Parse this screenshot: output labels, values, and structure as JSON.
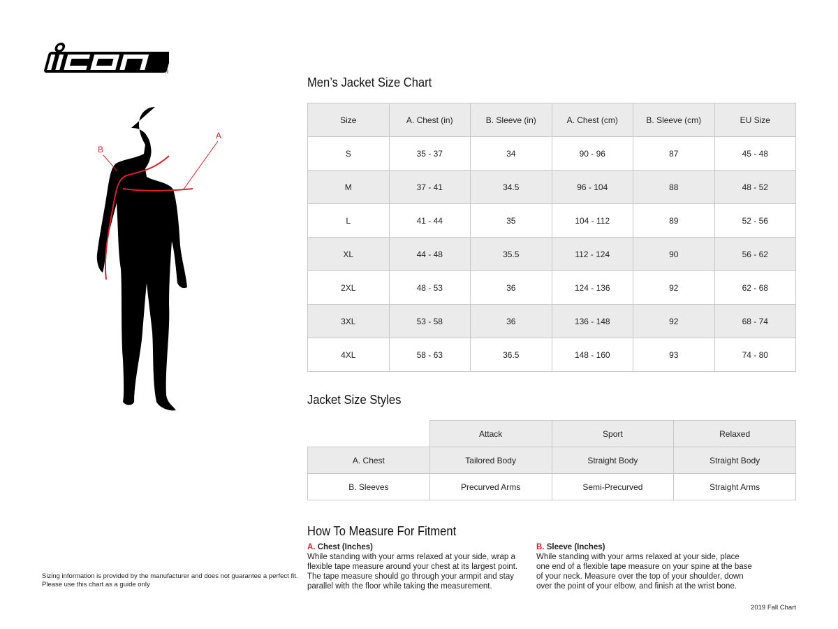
{
  "logo": {
    "text": "ICON"
  },
  "figure": {
    "label_a": "A",
    "label_b": "B",
    "accent": "#d0232a"
  },
  "size_chart": {
    "title": "Men’s Jacket Size Chart",
    "headers": [
      "Size",
      "A. Chest (in)",
      "B. Sleeve (in)",
      "A. Chest (cm)",
      "B. Sleeve (cm)",
      "EU Size"
    ],
    "rows": [
      [
        "S",
        "35 - 37",
        "34",
        "90 - 96",
        "87",
        "45 - 48"
      ],
      [
        "M",
        "37 - 41",
        "34.5",
        "96 - 104",
        "88",
        "48 - 52"
      ],
      [
        "L",
        "41 - 44",
        "35",
        "104 - 112",
        "89",
        "52 - 56"
      ],
      [
        "XL",
        "44 - 48",
        "35.5",
        "112 - 124",
        "90",
        "56 - 62"
      ],
      [
        "2XL",
        "48 - 53",
        "36",
        "124 - 136",
        "92",
        "62 - 68"
      ],
      [
        "3XL",
        "53 - 58",
        "36",
        "136 - 148",
        "92",
        "68 - 74"
      ],
      [
        "4XL",
        "58 - 63",
        "36.5",
        "148 - 160",
        "93",
        "74 - 80"
      ]
    ]
  },
  "styles": {
    "title": "Jacket Size Styles",
    "headers": [
      "",
      "Attack",
      "Sport",
      "Relaxed"
    ],
    "rows": [
      [
        "A. Chest",
        "Tailored Body",
        "Straight Body",
        "Straight Body"
      ],
      [
        "B. Sleeves",
        "Precurved Arms",
        "Semi-Precurved",
        "Straight Arms"
      ]
    ]
  },
  "measure": {
    "title": "How To Measure For Fitment",
    "chest": {
      "letter": "A.",
      "heading": "Chest (Inches)",
      "text": "While standing with your arms relaxed at your side, wrap a flexible tape measure around your chest at its largest point. The tape measure should go through your armpit and stay parallel with the floor while taking the measurement."
    },
    "sleeve": {
      "letter": "B.",
      "heading": "Sleeve (Inches)",
      "text": "While standing with your arms relaxed at your side, place one end of a flexible tape measure on your spine at the base of your neck. Measure over the top of your shoulder, down over the point of your elbow, and finish at the wrist bone."
    }
  },
  "disclaimer": {
    "line1": "Sizing information is provided by the manufacturer and does not guarantee a perfect fit.",
    "line2": "Please use this chart as a guide only"
  },
  "footer": "2019 Fall Chart"
}
